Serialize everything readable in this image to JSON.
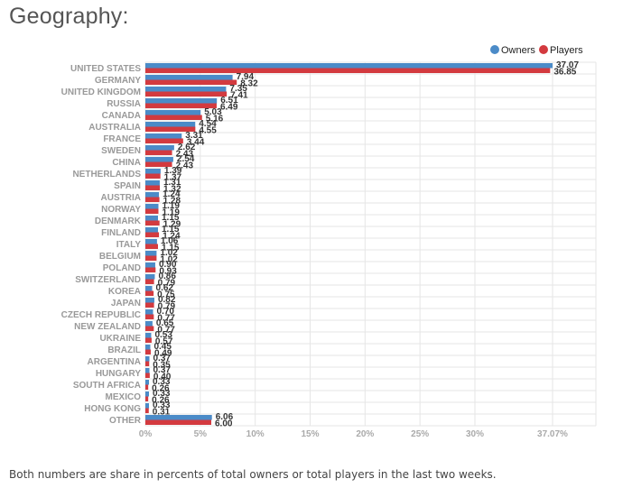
{
  "page": {
    "title": "Geography:",
    "footnote": "Both numbers are share in percents of total owners or total players in the last two weeks."
  },
  "colors": {
    "owners": "#4b8bc8",
    "players": "#d33a3f",
    "grid": "#e6e6e6"
  },
  "chart_data": {
    "type": "bar",
    "orientation": "horizontal",
    "legend_position": "top-right",
    "grid": true,
    "xlim": [
      0,
      37.07
    ],
    "x_ticks": [
      0,
      5,
      10,
      15,
      20,
      25,
      30,
      37.07
    ],
    "x_tick_labels": [
      "0%",
      "5%",
      "10%",
      "15%",
      "20%",
      "25%",
      "30%",
      "37.07%"
    ],
    "categories": [
      "UNITED STATES",
      "GERMANY",
      "UNITED KINGDOM",
      "RUSSIA",
      "CANADA",
      "AUSTRALIA",
      "FRANCE",
      "SWEDEN",
      "CHINA",
      "NETHERLANDS",
      "SPAIN",
      "AUSTRIA",
      "NORWAY",
      "DENMARK",
      "FINLAND",
      "ITALY",
      "BELGIUM",
      "POLAND",
      "SWITZERLAND",
      "KOREA",
      "JAPAN",
      "CZECH REPUBLIC",
      "NEW ZEALAND",
      "UKRAINE",
      "BRAZIL",
      "ARGENTINA",
      "HUNGARY",
      "SOUTH AFRICA",
      "MEXICO",
      "HONG KONG",
      "OTHER"
    ],
    "series": [
      {
        "name": "Owners",
        "values": [
          37.07,
          7.94,
          7.35,
          6.51,
          5.03,
          4.54,
          3.31,
          2.62,
          2.54,
          1.39,
          1.31,
          1.24,
          1.19,
          1.15,
          1.15,
          1.06,
          1.02,
          0.9,
          0.86,
          0.62,
          0.82,
          0.7,
          0.65,
          0.53,
          0.45,
          0.37,
          0.37,
          0.33,
          0.33,
          0.33,
          6.06
        ],
        "labels": [
          "37.07",
          "7.94",
          "7.35",
          "6.51",
          "5.03",
          "4.54",
          "3.31",
          "2.62",
          "2.54",
          "1.39",
          "1.31",
          "1.24",
          "1.19",
          "1.15",
          "1.15",
          "1.06",
          "1.02",
          "0.90",
          "0.86",
          "0.62",
          "0.82",
          "0.70",
          "0.65",
          "0.53",
          "0.45",
          "0.37",
          "0.37",
          "0.33",
          "0.33",
          "0.33",
          "6.06"
        ]
      },
      {
        "name": "Players",
        "values": [
          36.85,
          8.32,
          7.41,
          6.49,
          5.16,
          4.55,
          3.44,
          2.43,
          2.43,
          1.37,
          1.32,
          1.28,
          1.19,
          1.29,
          1.24,
          1.15,
          1.02,
          0.93,
          0.79,
          0.75,
          0.79,
          0.77,
          0.77,
          0.57,
          0.49,
          0.35,
          0.4,
          0.26,
          0.26,
          0.31,
          6.0
        ],
        "labels": [
          "36.85",
          "8.32",
          "7.41",
          "6.49",
          "5.16",
          "4.55",
          "3.44",
          "2.43",
          "2.43",
          "1.37",
          "1.32",
          "1.28",
          "1.19",
          "1.29",
          "1.24",
          "1.15",
          "1.02",
          "0.93",
          "0.79",
          "0.75",
          "0.79",
          "0.77",
          "0.77",
          "0.57",
          "0.49",
          "0.35",
          "0.40",
          "0.26",
          "0.26",
          "0.31",
          "6.00"
        ]
      }
    ]
  }
}
